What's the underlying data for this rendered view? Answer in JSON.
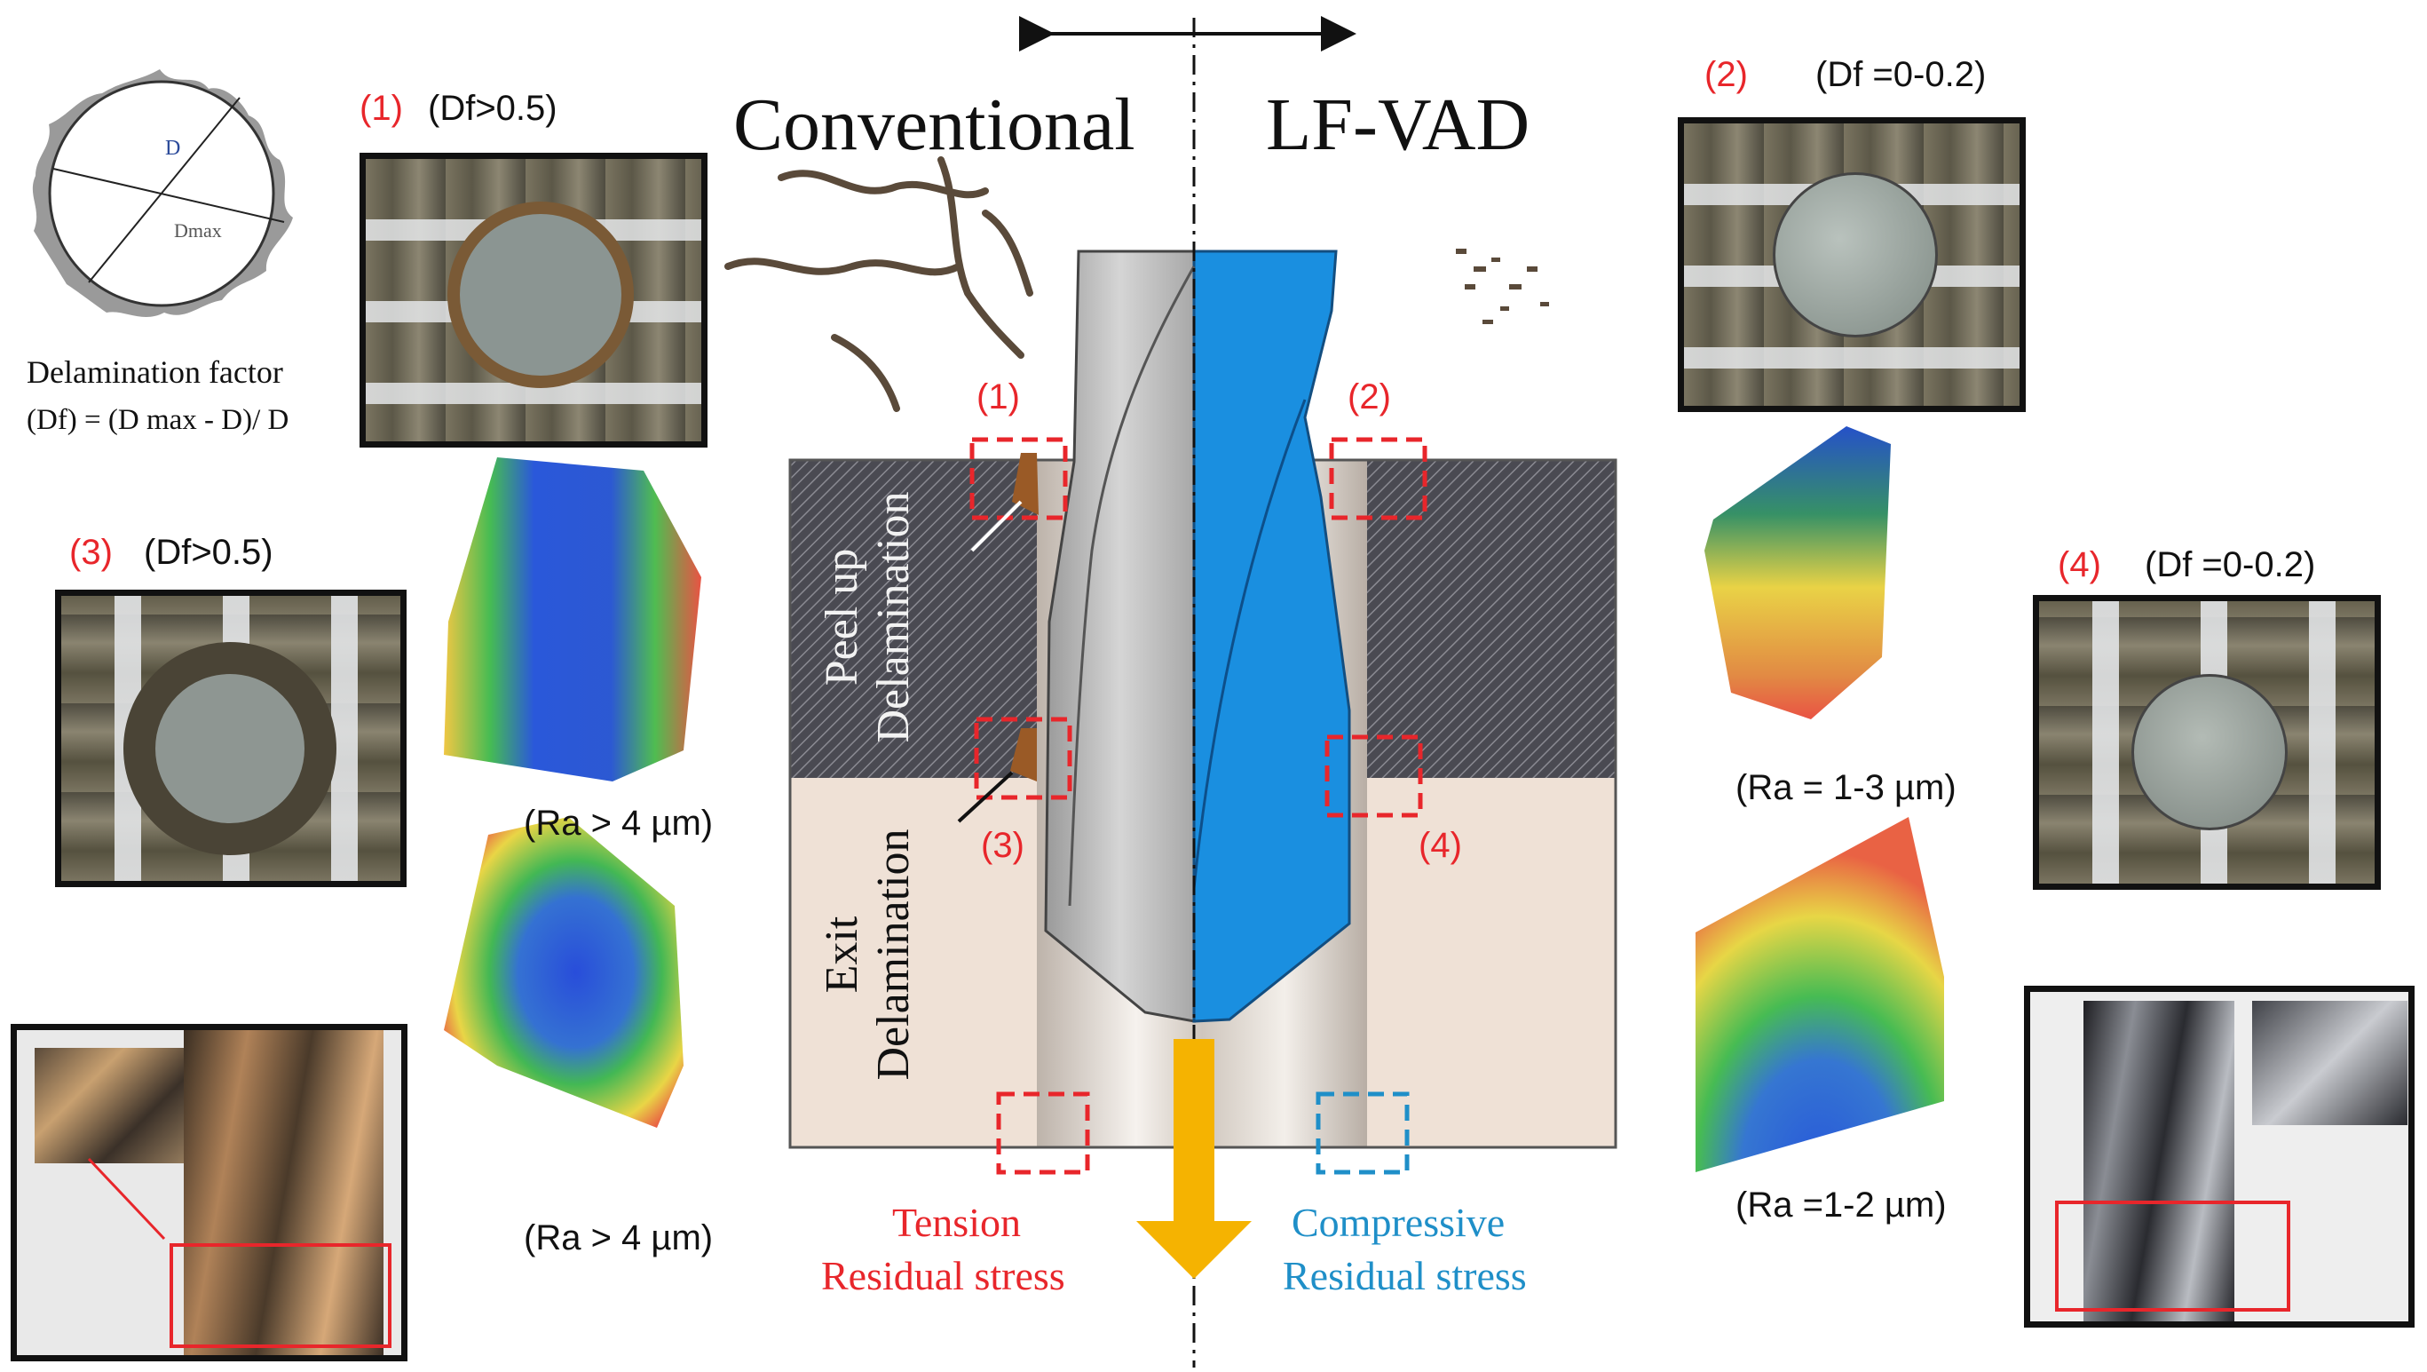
{
  "headings": {
    "conventional": "Conventional",
    "lf_vad": "LF-VAD"
  },
  "delamination": {
    "d_label": "D",
    "dmax_label": "Dmax",
    "title": "Delamination factor",
    "formula": "(Df) = (D max - D)/ D"
  },
  "panels": [
    {
      "num": "(1)",
      "df": "(Df>0.5)"
    },
    {
      "num": "(2)",
      "df": "(Df =0-0.2)"
    },
    {
      "num": "(3)",
      "df": "(Df>0.5)"
    },
    {
      "num": "(4)",
      "df": "(Df =0-0.2)"
    }
  ],
  "roughness": {
    "left_top": "(Ra > 4 µm)",
    "left_bottom": "(Ra > 4 µm)",
    "right_top": "(Ra = 1-3 µm)",
    "right_bottom": "(Ra =1-2 µm)"
  },
  "center": {
    "markers": [
      "(1)",
      "(2)",
      "(3)",
      "(4)"
    ],
    "peel_up_1": "Peel up",
    "peel_up_2": "Delamination",
    "exit_1": "Exit",
    "exit_2": "Delamination",
    "tension_1": "Tension",
    "tension_2": "Residual stress",
    "compressive_1": "Compressive",
    "compressive_2": "Residual stress"
  },
  "colors": {
    "red_accent": "#e8262b",
    "blue_accent": "#1f8fc8",
    "drill_blue": "#1a8fe0",
    "arrow_orange": "#f5b301"
  }
}
